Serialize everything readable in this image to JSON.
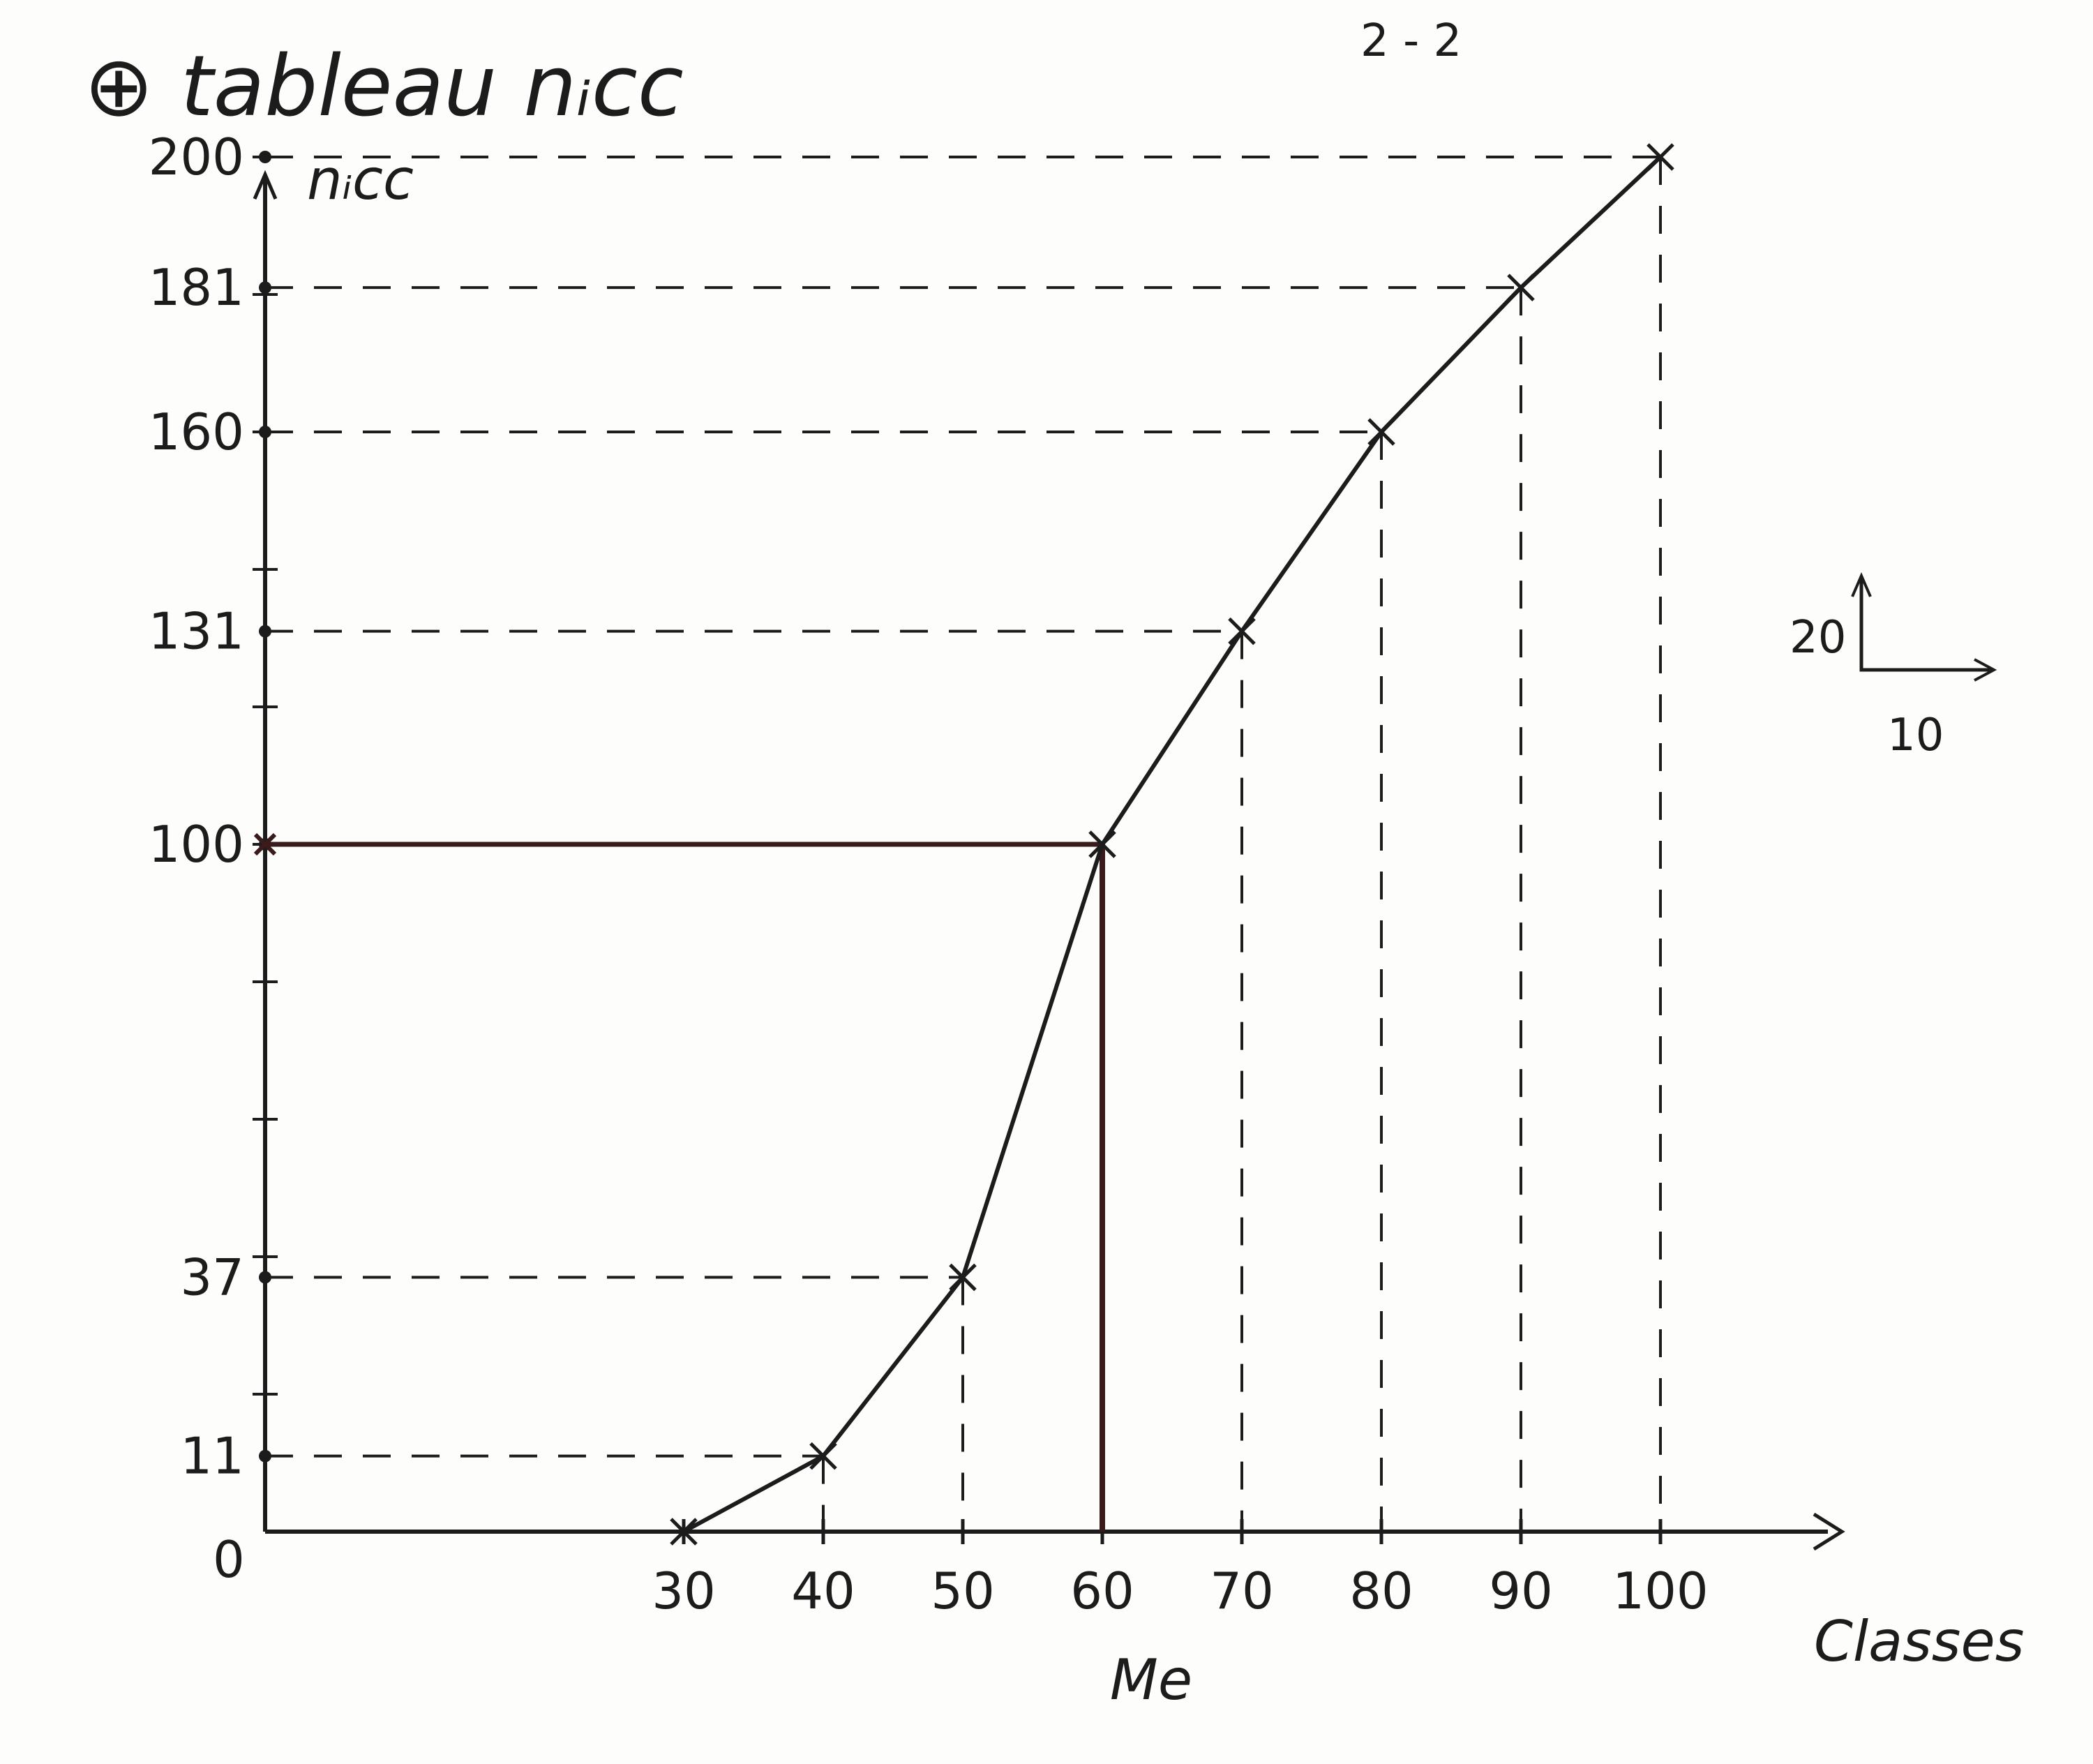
{
  "title": "⊕ tableau nᵢcc",
  "corner_note": "2 - 2",
  "chart_data": {
    "type": "line",
    "title": "⊕ tableau nᵢcc",
    "xlabel": "Classes",
    "ylabel": "nᵢcc",
    "origin_label": "0",
    "x_ticks": [
      "30",
      "40",
      "50",
      "60",
      "70",
      "80",
      "90",
      "100"
    ],
    "y_ticks": [
      "11",
      "37",
      "100",
      "131",
      "160",
      "181",
      "200"
    ],
    "series": [
      {
        "x": [
          30,
          40,
          50,
          60,
          70,
          80,
          90,
          100
        ],
        "y": [
          0,
          11,
          37,
          100,
          131,
          160,
          181,
          200
        ]
      }
    ],
    "median": {
      "x": 60,
      "y": 100,
      "label": "Me"
    },
    "scale_legend": {
      "y_unit": "20",
      "x_unit": "10"
    },
    "xlim": [
      0,
      125
    ],
    "ylim": [
      0,
      210
    ],
    "grid": false,
    "line_color": "#1c1c1c",
    "median_color": "#3a1a1a"
  }
}
